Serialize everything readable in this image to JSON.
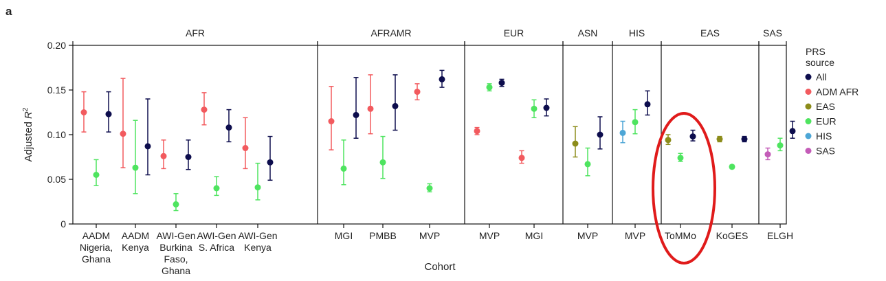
{
  "panel_label": "a",
  "chart_data": {
    "type": "scatter",
    "xlabel": "Cohort",
    "ylabel_main": "Adjusted ",
    "ylabel_italic": "R",
    "ylabel_sup": "2",
    "ylim": [
      0,
      0.2
    ],
    "yticks": [
      "0",
      "0.05",
      "0.10",
      "0.15",
      "0.20"
    ],
    "grid": false,
    "legend": {
      "title_line1": "PRS",
      "title_line2": "source",
      "placement": "right",
      "entries": [
        "All",
        "ADM AFR",
        "EAS",
        "EUR",
        "HIS",
        "SAS"
      ]
    },
    "colors": {
      "All": "#0d0d4d",
      "ADM AFR": "#f25a5e",
      "EAS": "#8c8c1a",
      "EUR": "#4ee45f",
      "HIS": "#4da6d6",
      "SAS": "#c45cb8",
      "highlight": "#e01b1b"
    },
    "groups": [
      "AFR",
      "AFRAMR",
      "EUR",
      "ASN",
      "HIS",
      "EAS",
      "SAS"
    ],
    "cohorts": [
      {
        "group": 0,
        "label": [
          "AADM",
          "Nigeria,",
          "Ghana"
        ],
        "points": [
          {
            "source": "ADM AFR",
            "y": 0.125,
            "lo": 0.103,
            "hi": 0.148
          },
          {
            "source": "EUR",
            "y": 0.055,
            "lo": 0.043,
            "hi": 0.072
          },
          {
            "source": "All",
            "y": 0.123,
            "lo": 0.103,
            "hi": 0.148
          }
        ]
      },
      {
        "group": 0,
        "label": [
          "AADM",
          "Kenya"
        ],
        "points": [
          {
            "source": "ADM AFR",
            "y": 0.101,
            "lo": 0.063,
            "hi": 0.163
          },
          {
            "source": "EUR",
            "y": 0.063,
            "lo": 0.034,
            "hi": 0.116
          },
          {
            "source": "All",
            "y": 0.087,
            "lo": 0.055,
            "hi": 0.14
          }
        ]
      },
      {
        "group": 0,
        "label": [
          "AWI-Gen",
          "Burkina",
          "Faso,",
          "Ghana"
        ],
        "points": [
          {
            "source": "ADM AFR",
            "y": 0.076,
            "lo": 0.062,
            "hi": 0.094
          },
          {
            "source": "EUR",
            "y": 0.022,
            "lo": 0.015,
            "hi": 0.034
          },
          {
            "source": "All",
            "y": 0.075,
            "lo": 0.061,
            "hi": 0.094
          }
        ]
      },
      {
        "group": 0,
        "label": [
          "AWI-Gen",
          "S. Africa"
        ],
        "points": [
          {
            "source": "ADM AFR",
            "y": 0.128,
            "lo": 0.111,
            "hi": 0.147
          },
          {
            "source": "EUR",
            "y": 0.04,
            "lo": 0.032,
            "hi": 0.053
          },
          {
            "source": "All",
            "y": 0.108,
            "lo": 0.092,
            "hi": 0.128
          }
        ]
      },
      {
        "group": 0,
        "label": [
          "AWI-Gen",
          "Kenya"
        ],
        "points": [
          {
            "source": "ADM AFR",
            "y": 0.085,
            "lo": 0.062,
            "hi": 0.119
          },
          {
            "source": "EUR",
            "y": 0.041,
            "lo": 0.027,
            "hi": 0.068
          },
          {
            "source": "All",
            "y": 0.069,
            "lo": 0.049,
            "hi": 0.098
          }
        ]
      },
      {
        "group": 1,
        "label": [
          "MGI"
        ],
        "points": [
          {
            "source": "ADM AFR",
            "y": 0.115,
            "lo": 0.083,
            "hi": 0.154
          },
          {
            "source": "EUR",
            "y": 0.062,
            "lo": 0.044,
            "hi": 0.094
          },
          {
            "source": "All",
            "y": 0.122,
            "lo": 0.096,
            "hi": 0.164
          }
        ]
      },
      {
        "group": 1,
        "label": [
          "PMBB"
        ],
        "points": [
          {
            "source": "ADM AFR",
            "y": 0.129,
            "lo": 0.101,
            "hi": 0.167
          },
          {
            "source": "EUR",
            "y": 0.069,
            "lo": 0.051,
            "hi": 0.098
          },
          {
            "source": "All",
            "y": 0.132,
            "lo": 0.105,
            "hi": 0.167
          }
        ]
      },
      {
        "group": 1,
        "label": [
          "MVP"
        ],
        "points": [
          {
            "source": "ADM AFR",
            "y": 0.148,
            "lo": 0.139,
            "hi": 0.157
          },
          {
            "source": "EUR",
            "y": 0.04,
            "lo": 0.036,
            "hi": 0.045
          },
          {
            "source": "All",
            "y": 0.162,
            "lo": 0.153,
            "hi": 0.172
          }
        ]
      },
      {
        "group": 2,
        "label": [
          "MVP"
        ],
        "points": [
          {
            "source": "ADM AFR",
            "y": 0.104,
            "lo": 0.1,
            "hi": 0.108
          },
          {
            "source": "EUR",
            "y": 0.153,
            "lo": 0.149,
            "hi": 0.157
          },
          {
            "source": "All",
            "y": 0.158,
            "lo": 0.154,
            "hi": 0.162
          }
        ]
      },
      {
        "group": 2,
        "label": [
          "MGI"
        ],
        "points": [
          {
            "source": "ADM AFR",
            "y": 0.074,
            "lo": 0.068,
            "hi": 0.082
          },
          {
            "source": "EUR",
            "y": 0.129,
            "lo": 0.119,
            "hi": 0.139
          },
          {
            "source": "All",
            "y": 0.13,
            "lo": 0.121,
            "hi": 0.14
          }
        ]
      },
      {
        "group": 3,
        "label": [
          "MVP"
        ],
        "points": [
          {
            "source": "EAS",
            "y": 0.09,
            "lo": 0.075,
            "hi": 0.109
          },
          {
            "source": "EUR",
            "y": 0.067,
            "lo": 0.054,
            "hi": 0.085
          },
          {
            "source": "All",
            "y": 0.1,
            "lo": 0.084,
            "hi": 0.12
          }
        ]
      },
      {
        "group": 4,
        "label": [
          "MVP"
        ],
        "points": [
          {
            "source": "HIS",
            "y": 0.102,
            "lo": 0.091,
            "hi": 0.115
          },
          {
            "source": "EUR",
            "y": 0.114,
            "lo": 0.101,
            "hi": 0.128
          },
          {
            "source": "All",
            "y": 0.134,
            "lo": 0.122,
            "hi": 0.149
          }
        ]
      },
      {
        "group": 5,
        "label": [
          "ToMMo"
        ],
        "points": [
          {
            "source": "EAS",
            "y": 0.094,
            "lo": 0.089,
            "hi": 0.1
          },
          {
            "source": "EUR",
            "y": 0.074,
            "lo": 0.07,
            "hi": 0.079
          },
          {
            "source": "All",
            "y": 0.098,
            "lo": 0.093,
            "hi": 0.105
          }
        ]
      },
      {
        "group": 5,
        "label": [
          "KoGES"
        ],
        "points": [
          {
            "source": "EAS",
            "y": 0.095,
            "lo": 0.092,
            "hi": 0.098
          },
          {
            "source": "EUR",
            "y": 0.064,
            "lo": 0.062,
            "hi": 0.066
          },
          {
            "source": "All",
            "y": 0.095,
            "lo": 0.092,
            "hi": 0.098
          }
        ]
      },
      {
        "group": 6,
        "label": [
          "ELGH"
        ],
        "points": [
          {
            "source": "SAS",
            "y": 0.078,
            "lo": 0.072,
            "hi": 0.085
          },
          {
            "source": "EUR",
            "y": 0.088,
            "lo": 0.082,
            "hi": 0.096
          },
          {
            "source": "All",
            "y": 0.104,
            "lo": 0.096,
            "hi": 0.115
          }
        ]
      }
    ]
  }
}
